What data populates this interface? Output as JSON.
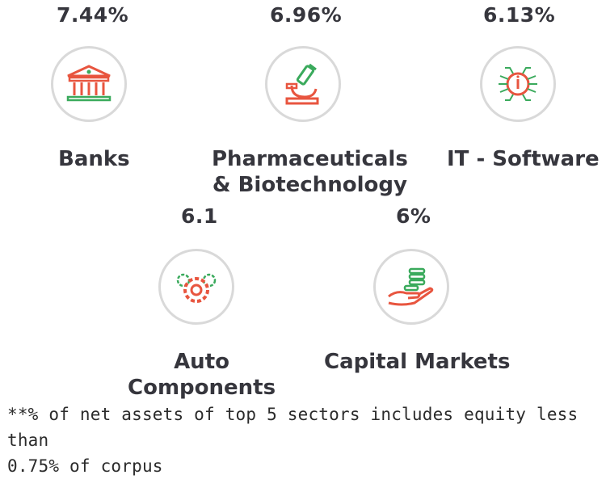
{
  "sectors": [
    {
      "percent": "7.44%",
      "label_lines": [
        "Banks"
      ],
      "icon": "bank-icon"
    },
    {
      "percent": "6.96%",
      "label_lines": [
        "Pharmaceuticals",
        "& Biotechnology"
      ],
      "icon": "microscope-icon"
    },
    {
      "percent": "6.13%",
      "label_lines": [
        "IT - Software"
      ],
      "icon": "chip-icon"
    },
    {
      "percent": "6.1",
      "label_lines": [
        "Auto",
        "Components"
      ],
      "icon": "gears-icon"
    },
    {
      "percent": "6%",
      "label_lines": [
        "Capital Markets"
      ],
      "icon": "coins-hand-icon"
    }
  ],
  "colors": {
    "accent_red": "#e8553f",
    "accent_green": "#3aaa5c",
    "ring": "#d9d9d9"
  },
  "footnote": {
    "line1": "**% of net assets of top 5 sectors includes equity less than",
    "line2": "0.75% of corpus"
  }
}
